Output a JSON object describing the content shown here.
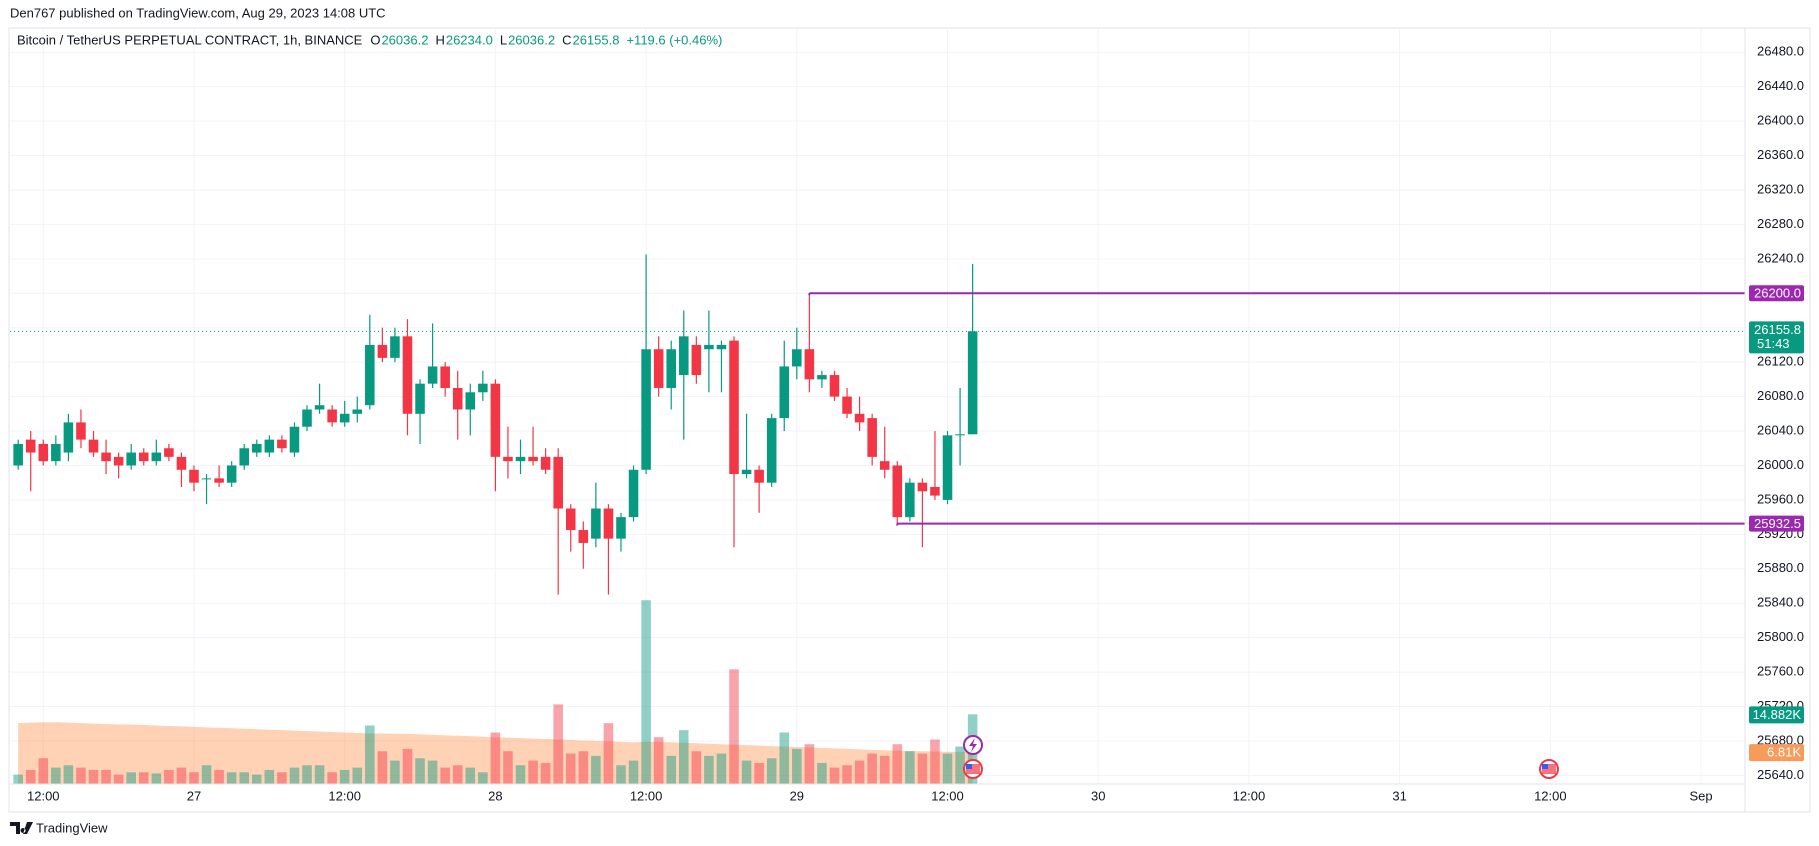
{
  "header": {
    "published": "Den767 published on TradingView.com, Aug 29, 2023 14:08 UTC"
  },
  "footer": {
    "brand": "TradingView"
  },
  "chart_data": {
    "type": "candlestick",
    "title": "Bitcoin / TetherUS PERPETUAL CONTRACT, 1h, BINANCE",
    "ohlc_legend": [
      {
        "label": "O",
        "value": "26036.2"
      },
      {
        "label": "H",
        "value": "26234.0"
      },
      {
        "label": "L",
        "value": "26036.2"
      },
      {
        "label": "C",
        "value": "26155.8"
      }
    ],
    "change": "+119.6 (+0.46%)",
    "up_color": "#089981",
    "down_color": "#f23645",
    "volume_up_color": "rgba(8,153,129,0.45)",
    "volume_down_color": "rgba(242,54,69,0.45)",
    "volume_ma_color": "rgba(255,152,90,0.45)",
    "open": [
      26000,
      26030,
      26025,
      26005,
      26015,
      26050,
      26030,
      26015,
      26010,
      26000,
      26015,
      26005,
      26020,
      26010,
      25995,
      25985,
      25985,
      25980,
      26000,
      26015,
      26015,
      26030,
      26015,
      26045,
      26065,
      26065,
      26050,
      26060,
      26070,
      26140,
      26125,
      26150,
      26060,
      26095,
      26115,
      26090,
      26065,
      26085,
      26095,
      26010,
      26005,
      26010,
      26010,
      26010,
      25950,
      25925,
      25915,
      25950,
      25915,
      25940,
      25995,
      26135,
      26090,
      26105,
      26140,
      26135,
      26135,
      26145,
      25990,
      25995,
      25980,
      26055,
      26115,
      26135,
      26100,
      26105,
      26080,
      26060,
      26055,
      26005,
      26000,
      25940,
      25980,
      25975,
      25960,
      26035,
      26036.2
    ],
    "high": [
      26030,
      26040,
      26030,
      26035,
      26060,
      26065,
      26040,
      26030,
      26015,
      26025,
      26020,
      26030,
      26025,
      26015,
      26000,
      25990,
      26000,
      26005,
      26025,
      26030,
      26035,
      26035,
      26050,
      26070,
      26095,
      26070,
      26075,
      26080,
      26175,
      26160,
      26160,
      26170,
      26100,
      26165,
      26120,
      26110,
      26095,
      26110,
      26100,
      26045,
      26030,
      26045,
      26020,
      26020,
      25955,
      25935,
      25980,
      25955,
      25945,
      26000,
      26245,
      26150,
      26145,
      26180,
      26150,
      26180,
      26145,
      26150,
      26060,
      26000,
      26060,
      26145,
      26160,
      26200,
      26110,
      26110,
      26090,
      26080,
      26060,
      26045,
      26005,
      25985,
      25985,
      26040,
      26040,
      26090,
      26234
    ],
    "low": [
      25995,
      25970,
      26000,
      26000,
      26005,
      26020,
      26010,
      25990,
      25985,
      25995,
      26000,
      26000,
      26005,
      25975,
      25970,
      25955,
      25975,
      25975,
      25995,
      26010,
      26010,
      26015,
      26010,
      26040,
      26060,
      26045,
      26045,
      26050,
      26065,
      26120,
      26120,
      26035,
      26025,
      26090,
      26080,
      26030,
      26035,
      26075,
      25970,
      25985,
      25990,
      26000,
      25990,
      25850,
      25900,
      25880,
      25905,
      25850,
      25900,
      25935,
      25990,
      26080,
      26065,
      26030,
      26095,
      26085,
      26085,
      25905,
      25985,
      25945,
      25975,
      26040,
      26100,
      26085,
      26090,
      26075,
      26055,
      26040,
      26000,
      25985,
      25932.5,
      25935,
      25905,
      25960,
      25955,
      26000,
      26036.2
    ],
    "close": [
      26025,
      26015,
      26005,
      26025,
      26050,
      26030,
      26015,
      26005,
      26000,
      26015,
      26005,
      26015,
      26010,
      25995,
      25980,
      25985,
      25980,
      26000,
      26020,
      26025,
      26030,
      26020,
      26045,
      26065,
      26070,
      26050,
      26060,
      26065,
      26140,
      26125,
      26150,
      26060,
      26095,
      26115,
      26090,
      26065,
      26085,
      26095,
      26010,
      26005,
      26010,
      26005,
      25995,
      25950,
      25925,
      25910,
      25950,
      25915,
      25940,
      25995,
      26135,
      26090,
      26135,
      26150,
      26105,
      26140,
      26140,
      25990,
      25995,
      25980,
      26055,
      26115,
      26135,
      26100,
      26105,
      26080,
      26060,
      26050,
      26010,
      25995,
      25940,
      25980,
      25970,
      25965,
      26035,
      26036.2,
      26155.8
    ],
    "volume": [
      2000,
      3000,
      5500,
      3500,
      4000,
      3500,
      3000,
      3000,
      2000,
      2500,
      2500,
      2250,
      3000,
      3500,
      2500,
      4000,
      3000,
      2500,
      2500,
      2000,
      3000,
      2500,
      3500,
      4000,
      4000,
      2500,
      3000,
      3500,
      12500,
      7000,
      5000,
      7500,
      5500,
      5000,
      3500,
      4000,
      3500,
      2500,
      11000,
      7000,
      4000,
      5000,
      4500,
      17000,
      6500,
      7000,
      6000,
      13000,
      4000,
      5000,
      39250,
      10000,
      6000,
      11500,
      7000,
      6000,
      6500,
      24500,
      5000,
      4500,
      5500,
      11000,
      7500,
      8500,
      4500,
      3500,
      4000,
      5000,
      6500,
      6000,
      8500,
      7000,
      6500,
      9500,
      6500,
      8000,
      14882
    ],
    "volume_label": "14.882K",
    "volume_ma": [
      13000,
      13100,
      13200,
      13200,
      13100,
      13000,
      12900,
      12800,
      12700,
      12700,
      12600,
      12500,
      12400,
      12300,
      12200,
      12100,
      12000,
      11900,
      11800,
      11700,
      11600,
      11500,
      11400,
      11300,
      11200,
      11100,
      11000,
      10900,
      10800,
      10800,
      10700,
      10700,
      10600,
      10500,
      10400,
      10300,
      10200,
      10100,
      10000,
      9900,
      9800,
      9700,
      9600,
      9500,
      9400,
      9300,
      9200,
      9100,
      9000,
      8900,
      9000,
      9000,
      8900,
      8800,
      8700,
      8600,
      8500,
      8400,
      8300,
      8200,
      8100,
      8000,
      7900,
      7800,
      7700,
      7600,
      7500,
      7400,
      7300,
      7200,
      7100,
      7050,
      7000,
      6950,
      6900,
      6850,
      6810
    ],
    "volume_ma_label": "6.81K",
    "volume_ylim": [
      0,
      160000
    ],
    "countdown": "51:43",
    "last_color": "#089981",
    "hlines": [
      {
        "value": 26200,
        "label": "26200.0",
        "start": 63,
        "color": "#9c27b0"
      },
      {
        "value": 25932.5,
        "label": "25932.5",
        "start": 70,
        "color": "#9c27b0"
      }
    ],
    "xlim": [
      -0.65,
      137.5
    ],
    "xticks": [
      {
        "value": 2,
        "label": "12:00"
      },
      {
        "value": 14,
        "label": "27"
      },
      {
        "value": 26,
        "label": "12:00"
      },
      {
        "value": 38,
        "label": "28"
      },
      {
        "value": 50,
        "label": "12:00"
      },
      {
        "value": 62,
        "label": "29"
      },
      {
        "value": 74,
        "label": "12:00"
      },
      {
        "value": 86,
        "label": "30"
      },
      {
        "value": 98,
        "label": "12:00"
      },
      {
        "value": 110,
        "label": "31"
      },
      {
        "value": 122,
        "label": "12:00"
      },
      {
        "value": 134,
        "label": "Sep"
      }
    ],
    "ylim": [
      25630,
      26500
    ],
    "yticks": [
      {
        "value": 25640,
        "label": "25640.0"
      },
      {
        "value": 25680,
        "label": "25680.0"
      },
      {
        "value": 25720,
        "label": "25720.0"
      },
      {
        "value": 25760,
        "label": "25760.0"
      },
      {
        "value": 25800,
        "label": "25800.0"
      },
      {
        "value": 25840,
        "label": "25840.0"
      },
      {
        "value": 25880,
        "label": "25880.0"
      },
      {
        "value": 25920,
        "label": "25920.0"
      },
      {
        "value": 25960,
        "label": "25960.0"
      },
      {
        "value": 26000,
        "label": "26000.0"
      },
      {
        "value": 26040,
        "label": "26040.0"
      },
      {
        "value": 26080,
        "label": "26080.0"
      },
      {
        "value": 26120,
        "label": "26120.0"
      },
      {
        "value": 26160,
        "label": "26160.0"
      },
      {
        "value": 26200,
        "label": "26200.0"
      },
      {
        "value": 26240,
        "label": "26240.0"
      },
      {
        "value": 26280,
        "label": "26280.0"
      },
      {
        "value": 26320,
        "label": "26320.0"
      },
      {
        "value": 26360,
        "label": "26360.0"
      },
      {
        "value": 26400,
        "label": "26400.0"
      },
      {
        "value": 26440,
        "label": "26440.0"
      },
      {
        "value": 26480,
        "label": "26480.0"
      }
    ],
    "grid": true
  }
}
